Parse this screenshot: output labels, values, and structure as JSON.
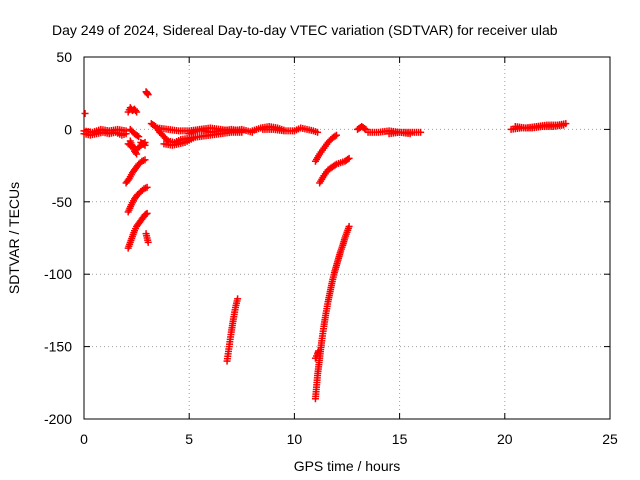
{
  "chart_data": {
    "type": "scatter",
    "title": "Day 249 of 2024, Sidereal Day-to-day VTEC variation (SDTVAR) for receiver ulab",
    "xlabel": "GPS time / hours",
    "ylabel": "SDTVAR / TECUs",
    "xlim": [
      0,
      25
    ],
    "ylim": [
      -200,
      50
    ],
    "xticks": [
      0,
      5,
      10,
      15,
      20,
      25
    ],
    "yticks": [
      -200,
      -150,
      -100,
      -50,
      0,
      50
    ],
    "grid": true,
    "marker": "plus",
    "color": "#ff0000",
    "series": [
      {
        "name": "SDTVAR",
        "segments": [
          {
            "x": [
              0.0,
              0.3,
              0.6,
              0.9,
              1.2,
              1.5,
              1.8,
              2.0
            ],
            "y": [
              -3,
              -4,
              -3,
              -2,
              -3,
              -2,
              -4,
              -3
            ]
          },
          {
            "x": [
              0.0,
              0.4,
              0.8,
              1.2,
              1.6,
              2.0
            ],
            "y": [
              -1,
              -2,
              0,
              -1,
              0,
              -1
            ]
          },
          {
            "x": [
              0.05
            ],
            "y": [
              11
            ]
          },
          {
            "x": [
              2.1,
              2.2,
              2.3,
              2.4,
              2.5
            ],
            "y": [
              12,
              15,
              13,
              14,
              12
            ]
          },
          {
            "x": [
              2.2,
              2.4,
              2.6
            ],
            "y": [
              0,
              -3,
              -5
            ]
          },
          {
            "x": [
              2.1,
              2.3,
              2.5,
              2.7,
              2.9
            ],
            "y": [
              -10,
              -12,
              -14,
              -11,
              -9
            ]
          },
          {
            "x": [
              2.2,
              2.3,
              2.4,
              2.5
            ],
            "y": [
              -8,
              -12,
              -15,
              -17
            ]
          },
          {
            "x": [
              2.7,
              2.9
            ],
            "y": [
              -9,
              -11
            ]
          },
          {
            "x": [
              2.0,
              2.15,
              2.3,
              2.45,
              2.6,
              2.75,
              2.9
            ],
            "y": [
              -37,
              -34,
              -30,
              -27,
              -24,
              -22,
              -21
            ]
          },
          {
            "x": [
              2.1,
              2.25,
              2.4,
              2.55,
              2.7,
              2.85,
              3.0
            ],
            "y": [
              -57,
              -52,
              -48,
              -45,
              -43,
              -41,
              -40
            ]
          },
          {
            "x": [
              2.1,
              2.2,
              2.3,
              2.4,
              2.5,
              2.6,
              2.7,
              2.8,
              2.9,
              3.0
            ],
            "y": [
              -82,
              -78,
              -74,
              -70,
              -67,
              -65,
              -63,
              -61,
              -59,
              -58
            ]
          },
          {
            "x": [
              2.95,
              3.0,
              3.05
            ],
            "y": [
              -72,
              -75,
              -78
            ]
          },
          {
            "x": [
              2.95,
              3.0,
              3.05
            ],
            "y": [
              26,
              25,
              24
            ]
          },
          {
            "x": [
              3.2,
              3.4,
              3.6,
              3.8,
              4.0,
              4.3,
              4.6,
              5.0,
              5.5,
              6.0,
              6.5,
              7.0,
              7.5
            ],
            "y": [
              4,
              2,
              -2,
              -5,
              -8,
              -9,
              -7,
              -6,
              -5,
              -4,
              -3,
              -2,
              -2
            ]
          },
          {
            "x": [
              3.5,
              4.0,
              4.5,
              5.0,
              5.5,
              6.0,
              6.5,
              7.0,
              7.5
            ],
            "y": [
              1,
              0,
              -1,
              -1,
              0,
              -2,
              -1,
              0,
              -1
            ]
          },
          {
            "x": [
              5.0,
              5.5,
              6.0,
              6.5,
              7.0,
              7.5,
              8.0
            ],
            "y": [
              -3,
              0,
              1,
              0,
              -1,
              0,
              -2
            ]
          },
          {
            "x": [
              3.8,
              4.2,
              4.8,
              5.2
            ],
            "y": [
              -10,
              -11,
              -9,
              -6
            ]
          },
          {
            "x": [
              6.8,
              6.9,
              7.0,
              7.1,
              7.2,
              7.3
            ],
            "y": [
              -160,
              -150,
              -140,
              -131,
              -123,
              -117
            ]
          },
          {
            "x": [
              8.0,
              8.4,
              8.8,
              9.2,
              9.6,
              10.0
            ],
            "y": [
              -1,
              1,
              2,
              1,
              -1,
              -1
            ]
          },
          {
            "x": [
              8.5,
              9.0,
              9.5
            ],
            "y": [
              0,
              0,
              -1
            ]
          },
          {
            "x": [
              10.0,
              10.3,
              10.6,
              10.9,
              11.1
            ],
            "y": [
              -1,
              1,
              0,
              -1,
              -2
            ]
          },
          {
            "x": [
              11.0,
              11.2,
              11.4,
              11.6,
              11.8,
              12.0
            ],
            "y": [
              -22,
              -17,
              -13,
              -9,
              -6,
              -4
            ]
          },
          {
            "x": [
              11.2,
              11.4,
              11.6,
              11.8,
              12.0,
              12.2,
              12.4,
              12.6
            ],
            "y": [
              -37,
              -32,
              -28,
              -26,
              -24,
              -23,
              -22,
              -20
            ]
          },
          {
            "x": [
              11.0,
              11.1,
              11.2,
              11.3,
              11.4,
              11.5,
              11.6,
              11.7,
              11.8,
              11.9,
              12.0,
              12.1,
              12.2,
              12.3,
              12.4,
              12.5,
              12.6
            ],
            "y": [
              -186,
              -170,
              -158,
              -146,
              -136,
              -127,
              -119,
              -112,
              -105,
              -99,
              -94,
              -89,
              -84,
              -80,
              -75,
              -71,
              -67
            ]
          },
          {
            "x": [
              11.0,
              11.1,
              11.15
            ],
            "y": [
              -158,
              -155,
              -153
            ]
          },
          {
            "x": [
              13.0,
              13.2,
              13.4
            ],
            "y": [
              0,
              2,
              0
            ]
          },
          {
            "x": [
              13.5,
              14.0,
              14.5,
              15.0,
              15.5,
              16.0
            ],
            "y": [
              -2,
              -2,
              -1,
              -2,
              -2,
              -2
            ]
          },
          {
            "x": [
              14.5,
              15.0,
              15.5
            ],
            "y": [
              -3,
              -2,
              -3
            ]
          },
          {
            "x": [
              20.3,
              20.8,
              21.3,
              21.8,
              22.3,
              22.8
            ],
            "y": [
              0,
              1,
              1,
              2,
              2,
              3
            ]
          },
          {
            "x": [
              20.5,
              21.0,
              21.5,
              22.0,
              22.5,
              22.9
            ],
            "y": [
              2,
              1,
              2,
              3,
              3,
              4
            ]
          }
        ]
      }
    ]
  }
}
